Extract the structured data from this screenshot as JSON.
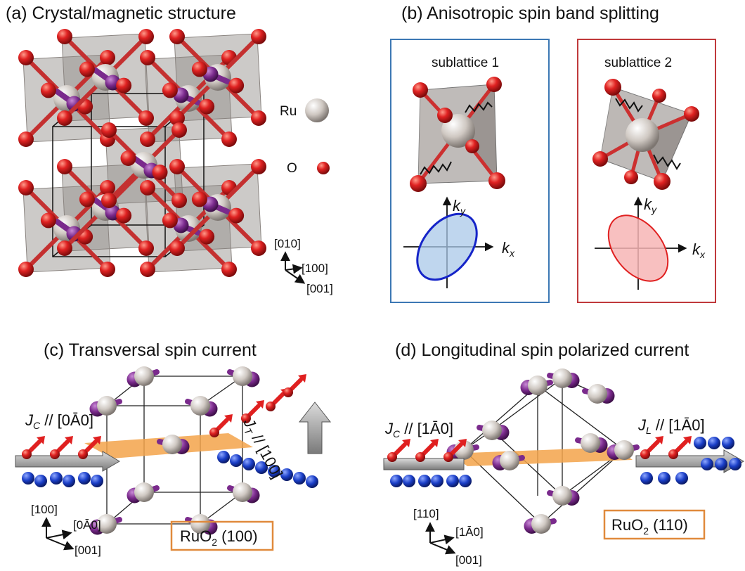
{
  "panels": {
    "a": {
      "title": "(a)  Crystal/magnetic structure",
      "legend_ru": "Ru",
      "legend_o": "O",
      "axes": [
        "[010]",
        "[100]",
        "[001]"
      ]
    },
    "b": {
      "title": "(b)  Anisotropic spin band splitting",
      "sub1": "sublattice 1",
      "sub2": "sublattice 2",
      "ky": "k",
      "ky_sub": "y",
      "kx": "k",
      "kx_sub": "x"
    },
    "c": {
      "title": "(c) Transversal spin current",
      "jc_main": "J",
      "jc_sub": "C",
      "jc_dir": " // [0Ā0]",
      "jt_main": "J",
      "jt_sub": "T",
      "jt_dir": " // [100]",
      "axes": [
        "[100]",
        "[0Ā0]",
        "[001]"
      ],
      "box_pre": "RuO",
      "box_sub": "2",
      "box_post": " (100)"
    },
    "d": {
      "title": "(d)  Longitudinal spin polarized current",
      "jc_main": "J",
      "jc_sub": "C",
      "jc_dir": " // [1Ā0]",
      "jl_main": "J",
      "jl_sub": "L",
      "jl_dir": " // [1Ā0]",
      "axes": [
        "[110]",
        "[1Ā0]",
        "[001]"
      ],
      "box_pre": "RuO",
      "box_sub": "2",
      "box_post": " (110)"
    }
  },
  "colors": {
    "oxygen": "#d42020",
    "ruthenium": "#cfc8c2",
    "moment": "#7a2a8c",
    "blue_box": "#3c78b4",
    "red_box": "#c0393b",
    "orange_box": "#e08a3c",
    "spin_up": "#e02020",
    "spin_down": "#1b3fc8",
    "plane": "#f3a34a"
  }
}
